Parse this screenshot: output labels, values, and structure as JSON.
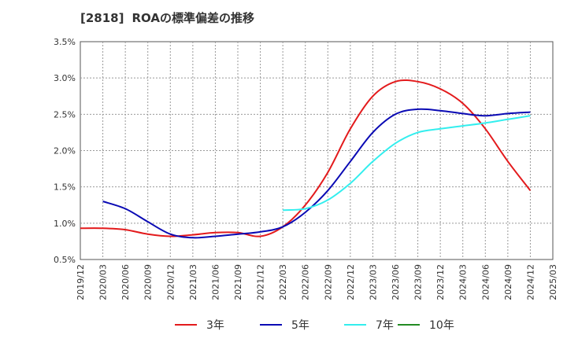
{
  "title": {
    "code": "[2818]",
    "text": "ROAの標準偏差の推移"
  },
  "chart_data": {
    "type": "line",
    "title": "[2818] ROAの標準偏差の推移",
    "xlabel": "",
    "ylabel": "",
    "ylim": [
      0.5,
      3.5
    ],
    "yticks": [
      "0.5%",
      "1.0%",
      "1.5%",
      "2.0%",
      "2.5%",
      "3.0%",
      "3.5%"
    ],
    "ytick_values": [
      0.5,
      1.0,
      1.5,
      2.0,
      2.5,
      3.0,
      3.5
    ],
    "xticks": [
      "2019/12",
      "2020/03",
      "2020/06",
      "2020/09",
      "2020/12",
      "2021/03",
      "2021/06",
      "2021/09",
      "2021/12",
      "2022/03",
      "2022/06",
      "2022/09",
      "2022/12",
      "2023/03",
      "2023/06",
      "2023/09",
      "2023/12",
      "2024/03",
      "2024/06",
      "2024/09",
      "2024/12",
      "2025/03"
    ],
    "grid": true,
    "legend_position": "bottom",
    "series": [
      {
        "name": "3年",
        "color": "#e31a1c",
        "x": [
          "2019/12",
          "2020/03",
          "2020/06",
          "2020/09",
          "2020/12",
          "2021/03",
          "2021/06",
          "2021/09",
          "2021/12",
          "2022/03",
          "2022/06",
          "2022/09",
          "2022/12",
          "2023/03",
          "2023/06",
          "2023/09",
          "2023/12",
          "2024/03",
          "2024/06",
          "2024/09",
          "2024/12"
        ],
        "values": [
          0.93,
          0.93,
          0.91,
          0.85,
          0.82,
          0.84,
          0.87,
          0.87,
          0.82,
          0.95,
          1.25,
          1.7,
          2.3,
          2.75,
          2.95,
          2.95,
          2.85,
          2.65,
          2.3,
          1.85,
          1.45
        ]
      },
      {
        "name": "5年",
        "color": "#0a0ab4",
        "x": [
          "2020/03",
          "2020/06",
          "2020/09",
          "2020/12",
          "2021/03",
          "2021/06",
          "2021/09",
          "2021/12",
          "2022/03",
          "2022/06",
          "2022/09",
          "2022/12",
          "2023/03",
          "2023/06",
          "2023/09",
          "2023/12",
          "2024/03",
          "2024/06",
          "2024/09",
          "2024/12"
        ],
        "values": [
          1.3,
          1.2,
          1.02,
          0.85,
          0.8,
          0.82,
          0.85,
          0.88,
          0.95,
          1.15,
          1.45,
          1.85,
          2.25,
          2.5,
          2.57,
          2.55,
          2.51,
          2.48,
          2.51,
          2.53
        ]
      },
      {
        "name": "7年",
        "color": "#33eeee",
        "x": [
          "2022/03",
          "2022/06",
          "2022/09",
          "2022/12",
          "2023/03",
          "2023/06",
          "2023/09",
          "2023/12",
          "2024/03",
          "2024/06",
          "2024/09",
          "2024/12"
        ],
        "values": [
          1.18,
          1.2,
          1.32,
          1.55,
          1.85,
          2.1,
          2.25,
          2.3,
          2.34,
          2.38,
          2.43,
          2.48
        ]
      },
      {
        "name": "10年",
        "color": "#228b22",
        "x": [],
        "values": []
      }
    ]
  }
}
